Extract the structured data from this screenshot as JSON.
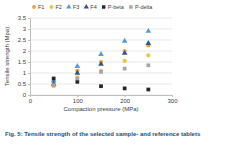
{
  "chart_data": {
    "type": "scatter",
    "title": "Fig. 5: Tensile strength of the selected sample- and reference tablets",
    "x_label": "Compaction pressure (MPa)",
    "y_label": "Tensile strength (Mpa)",
    "x": [
      50,
      100,
      150,
      200,
      250
    ],
    "series": [
      {
        "name": "F1",
        "color": "#f4a23a",
        "marker": "circle",
        "values": [
          0.55,
          1.1,
          1.5,
          2.0,
          2.25
        ]
      },
      {
        "name": "F2",
        "color": "#f2c43d",
        "marker": "circle",
        "values": [
          0.4,
          0.8,
          1.1,
          1.55,
          1.8
        ]
      },
      {
        "name": "F3",
        "color": "#5b9bd5",
        "marker": "triangle",
        "values": [
          0.65,
          1.3,
          1.85,
          2.45,
          2.9
        ]
      },
      {
        "name": "F4",
        "color": "#2f5597",
        "marker": "triangle",
        "values": [
          0.5,
          1.0,
          1.4,
          1.9,
          2.35
        ]
      },
      {
        "name": "P-beta",
        "color": "#262626",
        "marker": "square",
        "values": [
          0.75,
          0.6,
          0.4,
          0.3,
          0.25
        ]
      },
      {
        "name": "P-delta",
        "color": "#a6a6a6",
        "marker": "square",
        "values": [
          0.45,
          0.75,
          1.05,
          1.2,
          1.35
        ]
      }
    ],
    "xlim": [
      0,
      300
    ],
    "xticks": [
      0,
      100,
      200,
      300
    ],
    "ylim": [
      0,
      3.5
    ],
    "yticks": [
      0,
      0.5,
      1,
      1.5,
      2,
      2.5,
      3,
      3.5
    ],
    "grid": true,
    "legend": "top"
  }
}
